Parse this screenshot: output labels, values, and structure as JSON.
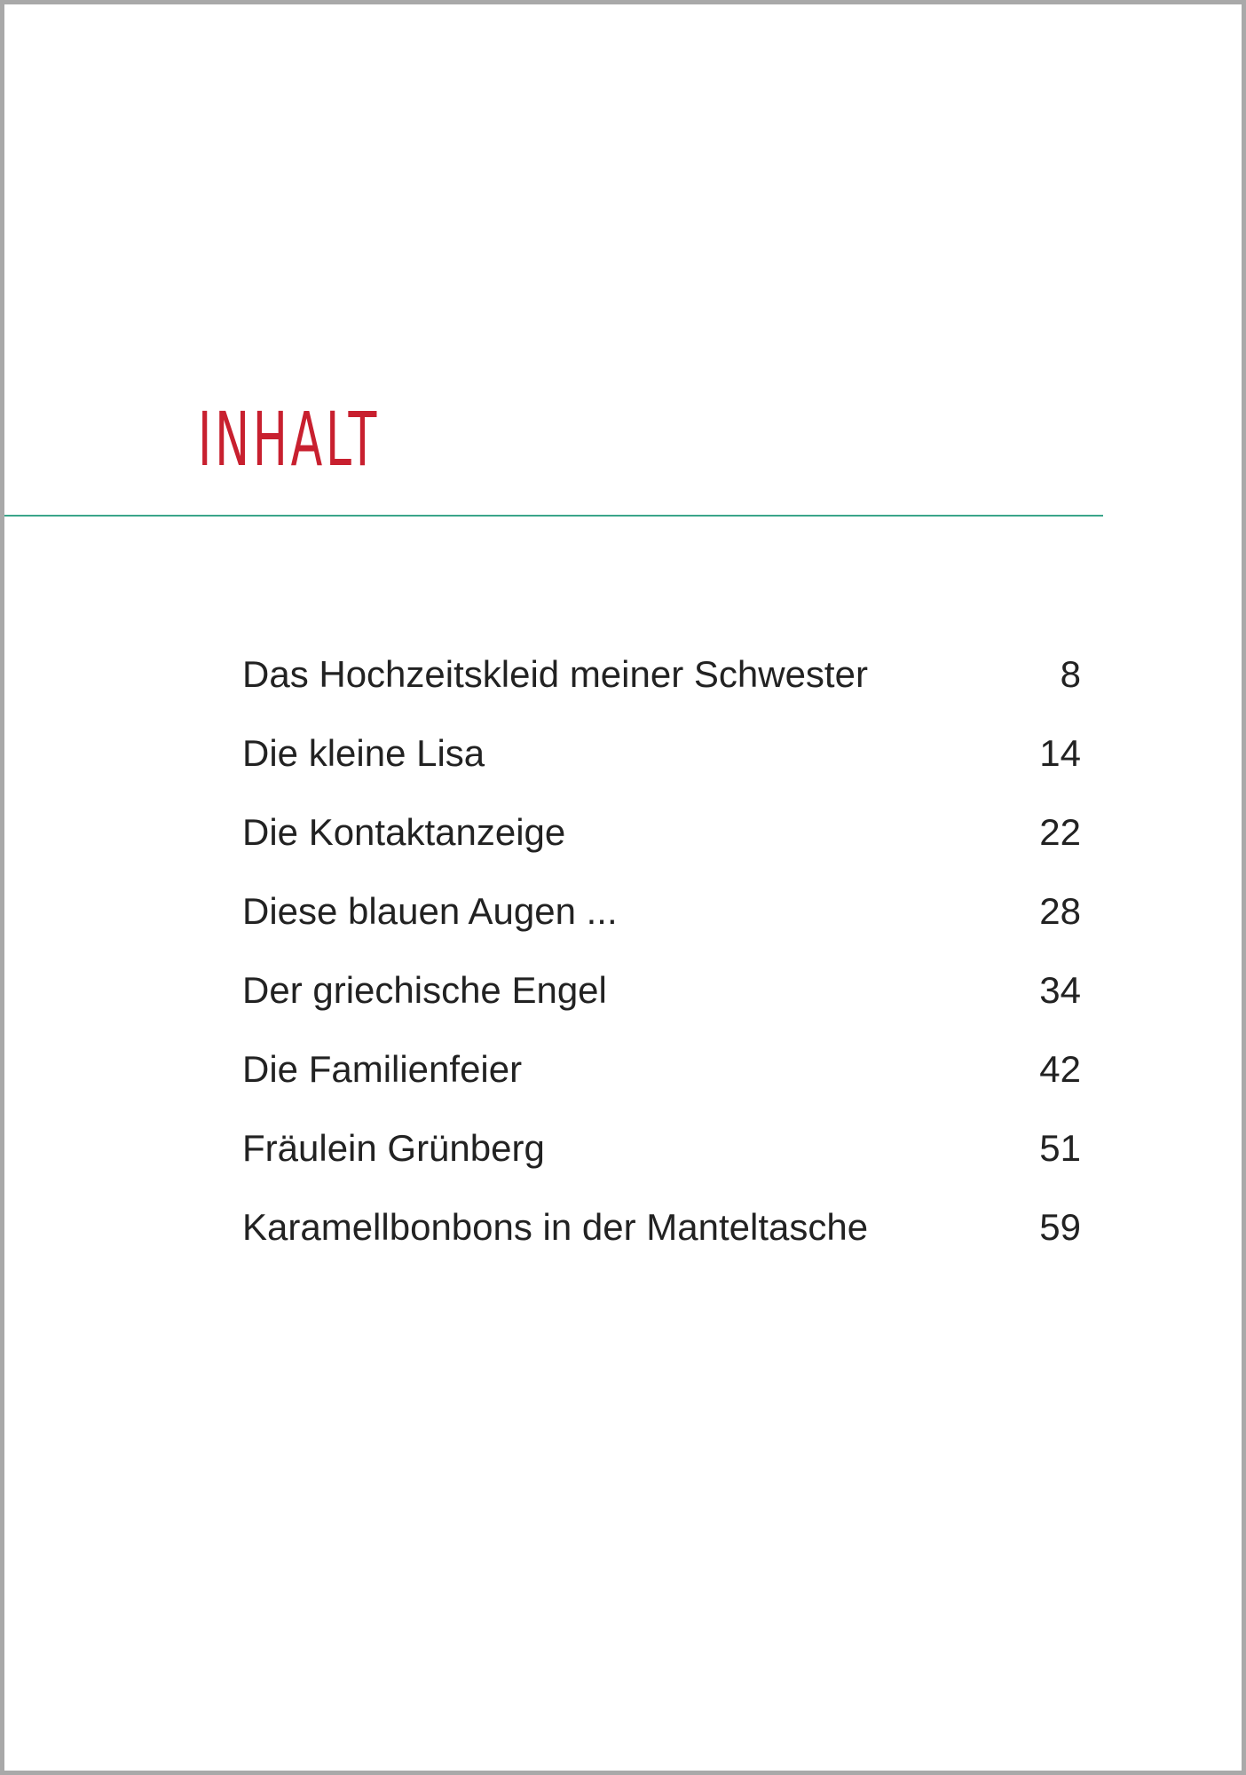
{
  "title": "INHALT",
  "colors": {
    "title": "#c8202f",
    "rule": "#3aa58a",
    "border": "#a9a9a9"
  },
  "entries": [
    {
      "title": "Das Hochzeitskleid meiner Schwester",
      "page": "8"
    },
    {
      "title": "Die kleine Lisa",
      "page": "14"
    },
    {
      "title": "Die Kontaktanzeige",
      "page": "22"
    },
    {
      "title": "Diese blauen Augen ...",
      "page": "28"
    },
    {
      "title": "Der griechische Engel",
      "page": "34"
    },
    {
      "title": "Die Familienfeier",
      "page": "42"
    },
    {
      "title": "Fräulein Grünberg",
      "page": "51"
    },
    {
      "title": "Karamellbonbons in der Manteltasche",
      "page": "59"
    }
  ]
}
